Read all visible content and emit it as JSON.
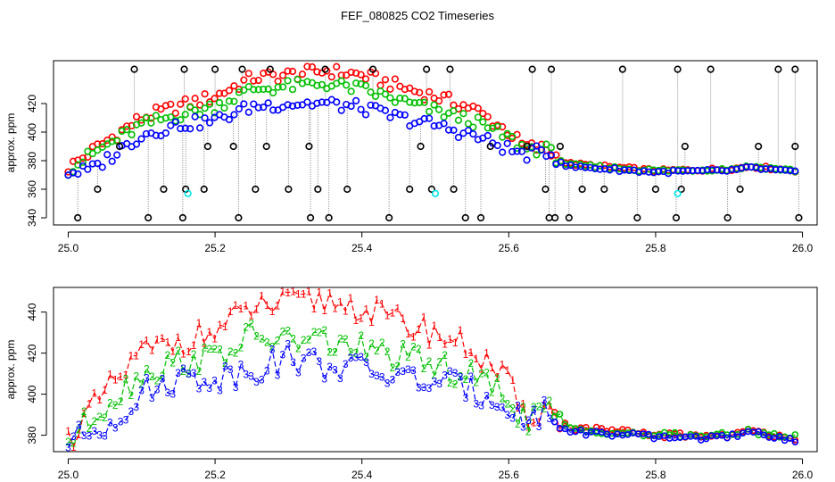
{
  "title": "FEF_080825  CO2 Timeseries",
  "colors": {
    "s1": "#ff0000",
    "s2": "#00c000",
    "s3": "#0000ff",
    "spike": "#000000",
    "cyan": "#00e5e5",
    "connector": "#9a9a9a"
  },
  "chart_data": [
    {
      "type": "scatter",
      "name": "top-panel",
      "ylabel": "approx. ppm",
      "xlabel": "",
      "xlim": [
        24.98,
        26.02
      ],
      "ylim": [
        335,
        450
      ],
      "xticks": [
        "25.0",
        "25.2",
        "25.4",
        "25.6",
        "25.8",
        "26.0"
      ],
      "yticks": [
        "340",
        "360",
        "380",
        "400",
        "420"
      ],
      "series": [
        {
          "name": "1",
          "color": "#ff0000",
          "keypoints": [
            [
              25.0,
              375
            ],
            [
              25.05,
              393
            ],
            [
              25.1,
              410
            ],
            [
              25.15,
              418
            ],
            [
              25.2,
              425
            ],
            [
              25.25,
              438
            ],
            [
              25.3,
              440
            ],
            [
              25.35,
              443
            ],
            [
              25.4,
              440
            ],
            [
              25.45,
              432
            ],
            [
              25.5,
              425
            ],
            [
              25.55,
              417
            ],
            [
              25.6,
              400
            ],
            [
              25.62,
              390
            ],
            [
              25.65,
              388
            ],
            [
              25.68,
              378
            ],
            [
              25.8,
              373
            ],
            [
              25.9,
              374
            ],
            [
              25.93,
              376
            ],
            [
              25.99,
              373
            ]
          ]
        },
        {
          "name": "2",
          "color": "#00c000",
          "keypoints": [
            [
              25.0,
              374
            ],
            [
              25.05,
              390
            ],
            [
              25.1,
              405
            ],
            [
              25.15,
              412
            ],
            [
              25.2,
              418
            ],
            [
              25.25,
              430
            ],
            [
              25.3,
              432
            ],
            [
              25.35,
              434
            ],
            [
              25.4,
              430
            ],
            [
              25.45,
              422
            ],
            [
              25.5,
              415
            ],
            [
              25.55,
              408
            ],
            [
              25.6,
              396
            ],
            [
              25.62,
              389
            ],
            [
              25.65,
              388
            ],
            [
              25.68,
              377
            ],
            [
              25.8,
              373
            ],
            [
              25.9,
              374
            ],
            [
              25.93,
              376
            ],
            [
              25.99,
              373
            ]
          ]
        },
        {
          "name": "3",
          "color": "#0000ff",
          "keypoints": [
            [
              25.0,
              372
            ],
            [
              25.03,
              373
            ],
            [
              25.05,
              380
            ],
            [
              25.1,
              398
            ],
            [
              25.15,
              405
            ],
            [
              25.2,
              408
            ],
            [
              25.25,
              418
            ],
            [
              25.3,
              420
            ],
            [
              25.35,
              420
            ],
            [
              25.4,
              417
            ],
            [
              25.45,
              410
            ],
            [
              25.5,
              405
            ],
            [
              25.55,
              398
            ],
            [
              25.6,
              388
            ],
            [
              25.62,
              384
            ],
            [
              25.65,
              387
            ],
            [
              25.68,
              376
            ],
            [
              25.8,
              372
            ],
            [
              25.9,
              373
            ],
            [
              25.93,
              375
            ],
            [
              25.99,
              372
            ]
          ]
        }
      ],
      "spikes_high": [
        25.09,
        25.158,
        25.2,
        25.237,
        25.275,
        25.35,
        25.415,
        25.488,
        25.52,
        25.632,
        25.658,
        25.755,
        25.83,
        25.875,
        25.967,
        25.99
      ],
      "spikes_low": [
        25.013,
        25.109,
        25.156,
        25.232,
        25.33,
        25.355,
        25.437,
        25.541,
        25.562,
        25.655,
        25.663,
        25.682,
        25.775,
        25.828,
        25.898,
        25.995
      ],
      "spikes_mid": [
        25.04,
        25.13,
        25.16,
        25.185,
        25.255,
        25.3,
        25.34,
        25.38,
        25.465,
        25.495,
        25.525,
        25.65,
        25.7,
        25.73,
        25.8,
        25.835,
        25.915
      ],
      "spikes_upper": [
        25.07,
        25.19,
        25.225,
        25.27,
        25.328,
        25.48,
        25.575,
        25.625,
        25.67,
        25.84,
        25.94,
        25.99
      ],
      "cyan_points": [
        [
          25.163,
          357
        ],
        [
          25.5,
          357
        ],
        [
          25.83,
          357
        ]
      ]
    },
    {
      "type": "line",
      "name": "bottom-panel",
      "ylabel": "approx. ppm",
      "xlabel": "",
      "xlim": [
        24.98,
        26.02
      ],
      "ylim": [
        372,
        452
      ],
      "xticks": [
        "25.0",
        "25.2",
        "25.4",
        "25.6",
        "25.8",
        "26.0"
      ],
      "yticks": [
        "380",
        "400",
        "420",
        "440"
      ],
      "series": [
        {
          "name": "1",
          "color": "#ff0000",
          "keypoints": [
            [
              25.0,
              378
            ],
            [
              25.05,
              400
            ],
            [
              25.1,
              420
            ],
            [
              25.15,
              426
            ],
            [
              25.2,
              430
            ],
            [
              25.25,
              442
            ],
            [
              25.3,
              444
            ],
            [
              25.35,
              446
            ],
            [
              25.4,
              442
            ],
            [
              25.45,
              435
            ],
            [
              25.5,
              430
            ],
            [
              25.55,
              422
            ],
            [
              25.6,
              405
            ],
            [
              25.62,
              388
            ],
            [
              25.65,
              394
            ],
            [
              25.68,
              384
            ],
            [
              25.8,
              380
            ],
            [
              25.9,
              380
            ],
            [
              25.93,
              382
            ],
            [
              25.99,
              379
            ]
          ]
        },
        {
          "name": "2",
          "color": "#00c000",
          "keypoints": [
            [
              25.0,
              377
            ],
            [
              25.05,
              395
            ],
            [
              25.1,
              410
            ],
            [
              25.15,
              416
            ],
            [
              25.2,
              418
            ],
            [
              25.25,
              428
            ],
            [
              25.3,
              426
            ],
            [
              25.35,
              426
            ],
            [
              25.4,
              422
            ],
            [
              25.45,
              418
            ],
            [
              25.5,
              414
            ],
            [
              25.55,
              408
            ],
            [
              25.6,
              400
            ],
            [
              25.62,
              387
            ],
            [
              25.65,
              393
            ],
            [
              25.68,
              383
            ],
            [
              25.8,
              380
            ],
            [
              25.9,
              380
            ],
            [
              25.93,
              382
            ],
            [
              25.99,
              379
            ]
          ]
        },
        {
          "name": "3",
          "color": "#0000ff",
          "keypoints": [
            [
              25.0,
              376
            ],
            [
              25.05,
              385
            ],
            [
              25.1,
              400
            ],
            [
              25.15,
              408
            ],
            [
              25.2,
              408
            ],
            [
              25.25,
              412
            ],
            [
              25.3,
              418
            ],
            [
              25.35,
              414
            ],
            [
              25.4,
              412
            ],
            [
              25.45,
              408
            ],
            [
              25.5,
              406
            ],
            [
              25.55,
              402
            ],
            [
              25.6,
              396
            ],
            [
              25.62,
              386
            ],
            [
              25.65,
              392
            ],
            [
              25.68,
              382
            ],
            [
              25.8,
              379
            ],
            [
              25.9,
              379
            ],
            [
              25.93,
              381
            ],
            [
              25.99,
              378
            ]
          ]
        }
      ]
    }
  ]
}
